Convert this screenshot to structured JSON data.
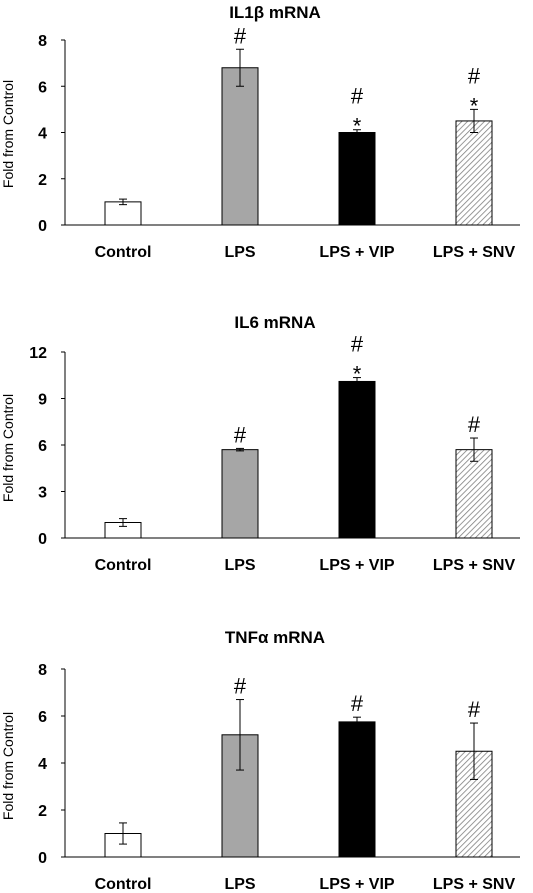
{
  "chart_data": [
    {
      "type": "bar",
      "title": "IL1β mRNA",
      "ylabel": "Fold from Control",
      "ylim": [
        0,
        8
      ],
      "yticks": [
        "0",
        "2",
        "4",
        "6",
        "8"
      ],
      "categories": [
        "Control",
        "LPS",
        "LPS + VIP",
        "LPS + SNV"
      ],
      "values": [
        1.0,
        6.8,
        4.0,
        4.5
      ],
      "errors": [
        0.12,
        0.8,
        0.12,
        0.5
      ],
      "fills": [
        "white",
        "gray",
        "black",
        "hatch"
      ],
      "annotations": [
        [],
        [
          "#"
        ],
        [
          "#",
          "*"
        ],
        [
          "#",
          "*"
        ]
      ]
    },
    {
      "type": "bar",
      "title": "IL6 mRNA",
      "ylabel": "Fold from Control",
      "ylim": [
        0,
        12
      ],
      "yticks": [
        "0",
        "3",
        "6",
        "9",
        "12"
      ],
      "categories": [
        "Control",
        "LPS",
        "LPS + VIP",
        "LPS + SNV"
      ],
      "values": [
        1.0,
        5.7,
        10.1,
        5.7
      ],
      "errors": [
        0.25,
        0.08,
        0.25,
        0.75
      ],
      "fills": [
        "white",
        "gray",
        "black",
        "hatch"
      ],
      "annotations": [
        [],
        [
          "#"
        ],
        [
          "#",
          "*"
        ],
        [
          "#"
        ]
      ]
    },
    {
      "type": "bar",
      "title": "TNFα mRNA",
      "ylabel": "Fold from Control",
      "ylim": [
        0,
        8
      ],
      "yticks": [
        "0",
        "2",
        "4",
        "6",
        "8"
      ],
      "categories": [
        "Control",
        "LPS",
        "LPS + VIP",
        "LPS + SNV"
      ],
      "values": [
        1.0,
        5.2,
        5.75,
        4.5
      ],
      "errors": [
        0.45,
        1.5,
        0.2,
        1.2
      ],
      "fills": [
        "white",
        "gray",
        "black",
        "hatch"
      ],
      "annotations": [
        [],
        [
          "#"
        ],
        [
          "#"
        ],
        [
          "#"
        ]
      ]
    }
  ],
  "colors": {
    "gray": "#a6a6a6",
    "black": "#000000",
    "white": "#ffffff",
    "hatch_line": "#7f7f7f"
  }
}
